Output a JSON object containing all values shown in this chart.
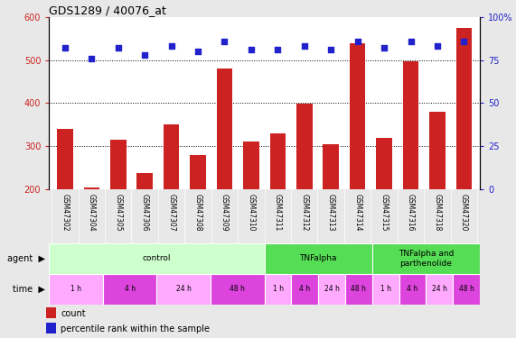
{
  "title": "GDS1289 / 40076_at",
  "samples": [
    "GSM47302",
    "GSM47304",
    "GSM47305",
    "GSM47306",
    "GSM47307",
    "GSM47308",
    "GSM47309",
    "GSM47310",
    "GSM47311",
    "GSM47312",
    "GSM47313",
    "GSM47314",
    "GSM47315",
    "GSM47316",
    "GSM47318",
    "GSM47320"
  ],
  "counts": [
    340,
    205,
    315,
    238,
    350,
    280,
    480,
    310,
    330,
    398,
    305,
    538,
    320,
    498,
    380,
    575
  ],
  "percentiles": [
    82,
    76,
    82,
    78,
    83,
    80,
    86,
    81,
    81,
    83,
    81,
    86,
    82,
    86,
    83,
    86
  ],
  "bar_color": "#cc2222",
  "dot_color": "#2222cc",
  "ylim_left": [
    200,
    600
  ],
  "ylim_right": [
    0,
    100
  ],
  "yticks_left": [
    200,
    300,
    400,
    500,
    600
  ],
  "yticks_right": [
    0,
    25,
    50,
    75,
    100
  ],
  "grid_lines": [
    300,
    400,
    500
  ],
  "agent_groups": [
    {
      "label": "control",
      "start": 0,
      "end": 8,
      "color": "#ccffcc"
    },
    {
      "label": "TNFalpha",
      "start": 8,
      "end": 12,
      "color": "#55dd55"
    },
    {
      "label": "TNFalpha and\nparthenolide",
      "start": 12,
      "end": 16,
      "color": "#55dd55"
    }
  ],
  "time_groups": [
    {
      "label": "1 h",
      "start": 0,
      "end": 2,
      "color": "#ffaaff"
    },
    {
      "label": "4 h",
      "start": 2,
      "end": 4,
      "color": "#dd44dd"
    },
    {
      "label": "24 h",
      "start": 4,
      "end": 6,
      "color": "#ffaaff"
    },
    {
      "label": "48 h",
      "start": 6,
      "end": 8,
      "color": "#dd44dd"
    },
    {
      "label": "1 h",
      "start": 8,
      "end": 9,
      "color": "#ffaaff"
    },
    {
      "label": "4 h",
      "start": 9,
      "end": 10,
      "color": "#dd44dd"
    },
    {
      "label": "24 h",
      "start": 10,
      "end": 11,
      "color": "#ffaaff"
    },
    {
      "label": "48 h",
      "start": 11,
      "end": 12,
      "color": "#dd44dd"
    },
    {
      "label": "1 h",
      "start": 12,
      "end": 13,
      "color": "#ffaaff"
    },
    {
      "label": "4 h",
      "start": 13,
      "end": 14,
      "color": "#dd44dd"
    },
    {
      "label": "24 h",
      "start": 14,
      "end": 15,
      "color": "#ffaaff"
    },
    {
      "label": "48 h",
      "start": 15,
      "end": 16,
      "color": "#dd44dd"
    }
  ],
  "sample_bg_color": "#cccccc",
  "legend_count_label": "count",
  "legend_pct_label": "percentile rank within the sample",
  "bg_color": "#e8e8e8",
  "plot_bg_color": "#ffffff",
  "fig_width": 5.71,
  "fig_height": 3.75,
  "dpi": 100
}
